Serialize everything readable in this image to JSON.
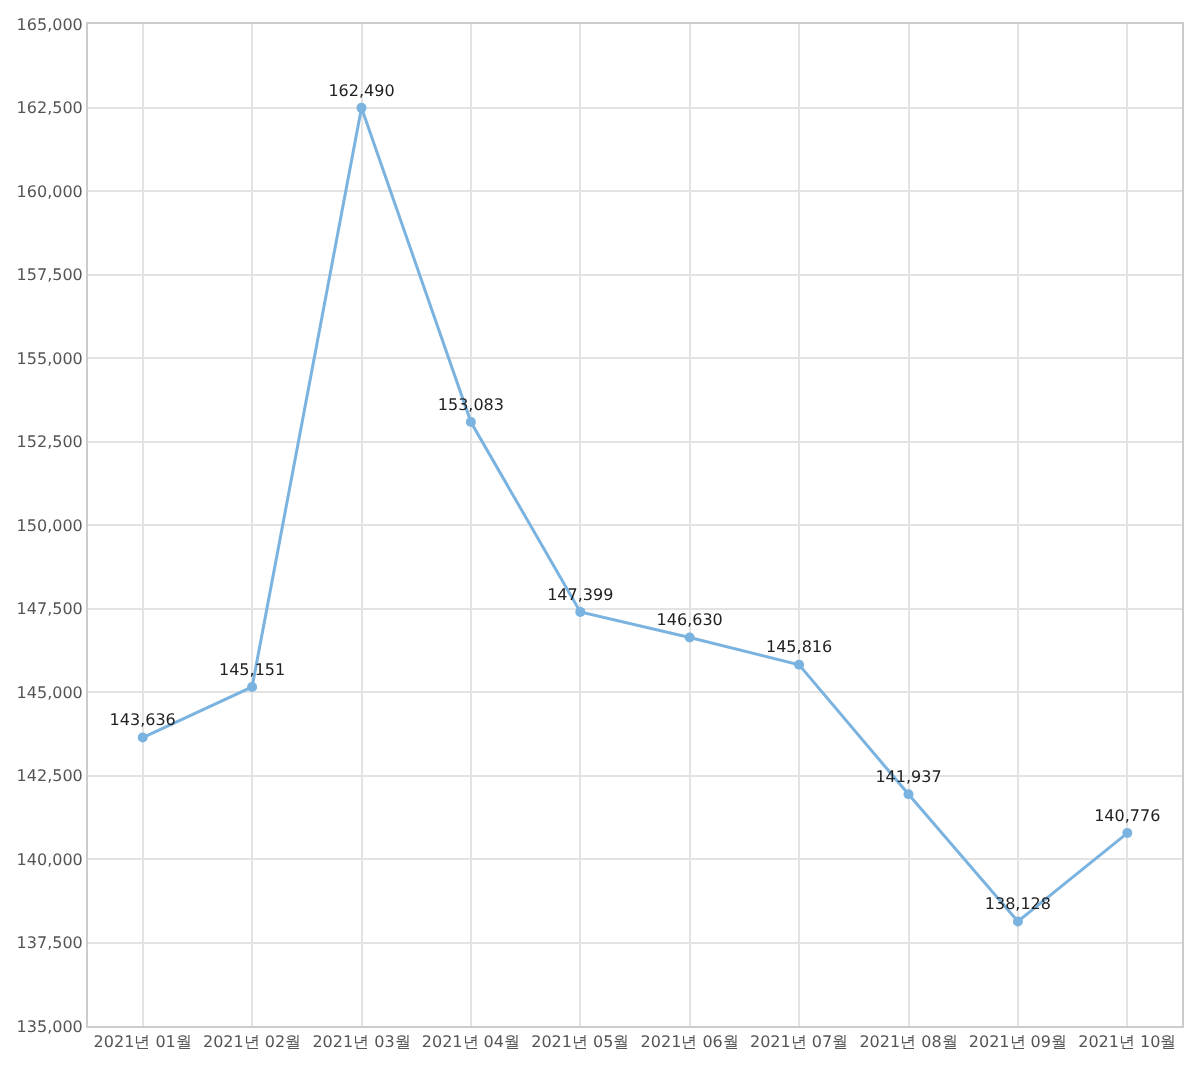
{
  "chart_data": {
    "type": "line",
    "categories": [
      "2021년 01월",
      "2021년 02월",
      "2021년 03월",
      "2021년 04월",
      "2021년 05월",
      "2021년 06월",
      "2021년 07월",
      "2021년 08월",
      "2021년 09월",
      "2021년 10월"
    ],
    "series": [
      {
        "color": "#7ab3e0",
        "values": [
          143636,
          145151,
          162490,
          153083,
          147399,
          146630,
          145816,
          141937,
          138128,
          140776
        ],
        "value_labels": [
          "143,636",
          "145,151",
          "162,490",
          "153,083",
          "147,399",
          "146,630",
          "145,816",
          "141,937",
          "138,128",
          "140,776"
        ]
      }
    ],
    "ylim": [
      135000,
      165000
    ],
    "yticks": [
      {
        "value": 135000,
        "label": "135,000"
      },
      {
        "value": 137500,
        "label": "137,500"
      },
      {
        "value": 140000,
        "label": "140,000"
      },
      {
        "value": 142500,
        "label": "142,500"
      },
      {
        "value": 145000,
        "label": "145,000"
      },
      {
        "value": 147500,
        "label": "147,500"
      },
      {
        "value": 150000,
        "label": "150,000"
      },
      {
        "value": 152500,
        "label": "152,500"
      },
      {
        "value": 155000,
        "label": "155,000"
      },
      {
        "value": 157500,
        "label": "157,500"
      },
      {
        "value": 160000,
        "label": "160,000"
      },
      {
        "value": 162500,
        "label": "162,500"
      },
      {
        "value": 165000,
        "label": "165,000"
      }
    ],
    "grid": true,
    "marker": "circle",
    "line_style": "solid"
  }
}
